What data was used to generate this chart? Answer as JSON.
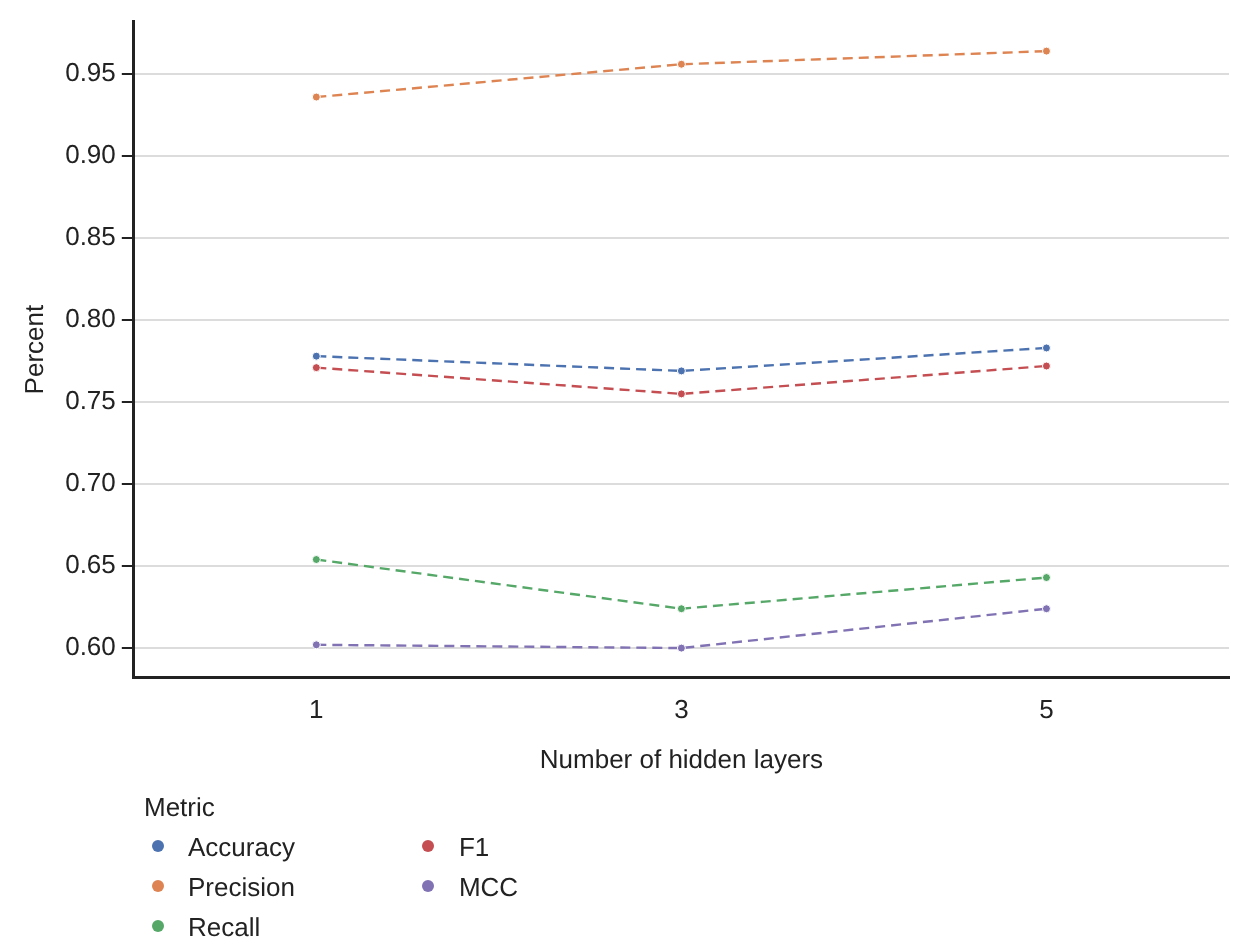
{
  "chart_data": {
    "type": "line",
    "xlabel": "Number of hidden layers",
    "ylabel": "Percent",
    "legend_title": "Metric",
    "categories": [
      "1",
      "3",
      "5"
    ],
    "series": [
      {
        "name": "Accuracy",
        "color": "#4c72b0",
        "values": [
          0.778,
          0.769,
          0.783
        ]
      },
      {
        "name": "Precision",
        "color": "#dd8452",
        "values": [
          0.936,
          0.956,
          0.964
        ]
      },
      {
        "name": "Recall",
        "color": "#55a868",
        "values": [
          0.654,
          0.624,
          0.643
        ]
      },
      {
        "name": "F1",
        "color": "#c44e52",
        "values": [
          0.771,
          0.755,
          0.772
        ]
      },
      {
        "name": "MCC",
        "color": "#8172b3",
        "values": [
          0.602,
          0.6,
          0.624
        ]
      }
    ],
    "ylim": [
      0.582,
      0.982
    ],
    "yticks": [
      {
        "value": 0.6,
        "label": "0.60"
      },
      0.65,
      {
        "value": 0.7,
        "label": "0.70"
      },
      0.75,
      {
        "value": 0.8,
        "label": "0.80"
      },
      0.85,
      {
        "value": 0.9,
        "label": "0.90"
      },
      0.95
    ],
    "grid": "y",
    "legend": "bottom left",
    "marker": "circle",
    "line_style": "dashed"
  }
}
